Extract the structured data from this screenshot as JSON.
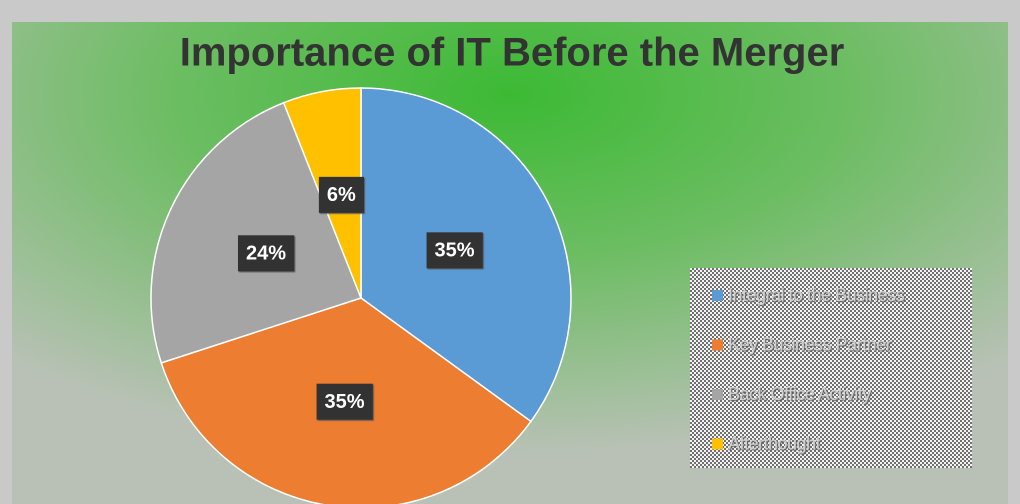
{
  "chart_data": {
    "type": "pie",
    "title": "Importance of IT Before the Merger",
    "categories": [
      "Integral to the Business",
      "Key Business Partner",
      "Back Office Activity",
      "Afterthought"
    ],
    "values": [
      35,
      35,
      24,
      6
    ],
    "value_labels": [
      "35%",
      "35%",
      "24%",
      "6%"
    ],
    "colors": [
      "#5b9bd5",
      "#ed7d31",
      "#a5a5a5",
      "#ffc000"
    ],
    "legend": "right"
  }
}
